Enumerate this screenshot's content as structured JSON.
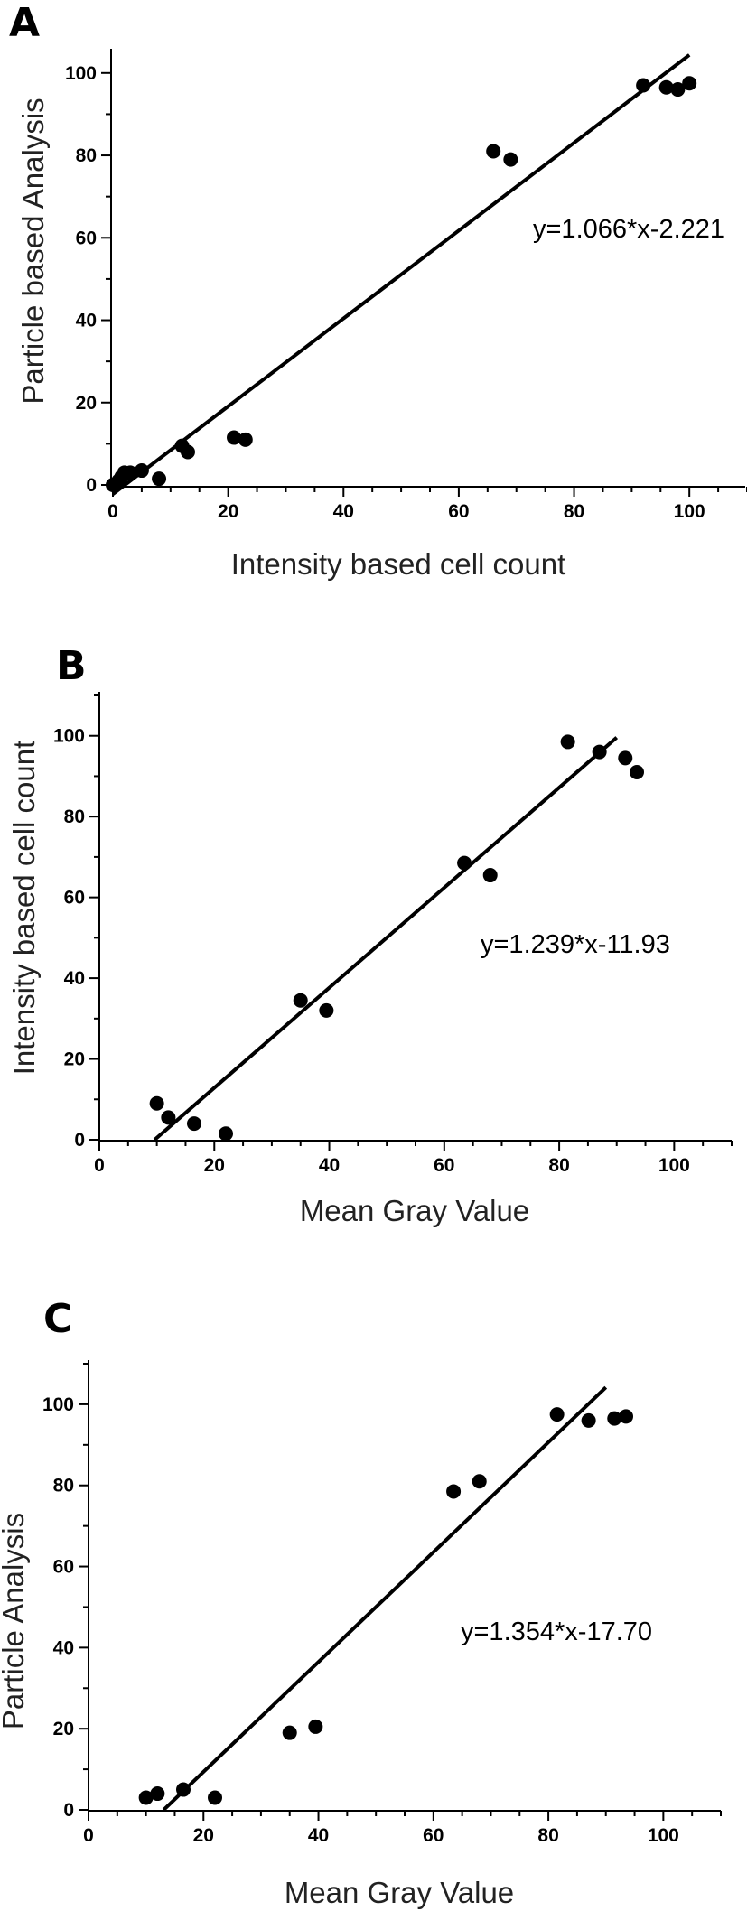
{
  "chart_data": [
    {
      "type": "scatter",
      "panel_label": "A",
      "xlabel": "Intensity based cell count",
      "ylabel": "Particle based Analysis",
      "xlim": [
        0,
        110
      ],
      "ylim": [
        0,
        105
      ],
      "x_ticks": [
        0,
        20,
        40,
        60,
        80,
        100
      ],
      "y_ticks": [
        0,
        20,
        40,
        60,
        80,
        100
      ],
      "grid": false,
      "points": [
        {
          "x": 0,
          "y": 0
        },
        {
          "x": 1,
          "y": 1
        },
        {
          "x": 1.5,
          "y": 2
        },
        {
          "x": 2,
          "y": 3
        },
        {
          "x": 3,
          "y": 3
        },
        {
          "x": 5,
          "y": 3.5
        },
        {
          "x": 8,
          "y": 1.5
        },
        {
          "x": 12,
          "y": 9.5
        },
        {
          "x": 13,
          "y": 8
        },
        {
          "x": 21,
          "y": 11.5
        },
        {
          "x": 23,
          "y": 11
        },
        {
          "x": 66,
          "y": 81
        },
        {
          "x": 69,
          "y": 79
        },
        {
          "x": 92,
          "y": 97
        },
        {
          "x": 96,
          "y": 96.5
        },
        {
          "x": 98,
          "y": 96
        },
        {
          "x": 100,
          "y": 97.5
        }
      ],
      "fit": {
        "slope": 1.066,
        "intercept": -2.221,
        "x_range": [
          0,
          100
        ],
        "equation": "y=1.066*x-2.221"
      }
    },
    {
      "type": "scatter",
      "panel_label": "B",
      "xlabel": "Mean Gray Value",
      "ylabel": "Intensity based cell count",
      "xlim": [
        0,
        110
      ],
      "ylim": [
        0,
        110
      ],
      "x_ticks": [
        0,
        20,
        40,
        60,
        80,
        100
      ],
      "y_ticks": [
        0,
        20,
        40,
        60,
        80,
        100
      ],
      "grid": false,
      "points": [
        {
          "x": 10,
          "y": 9
        },
        {
          "x": 12,
          "y": 5.5
        },
        {
          "x": 16.5,
          "y": 4
        },
        {
          "x": 22,
          "y": 1.5
        },
        {
          "x": 35,
          "y": 34.5
        },
        {
          "x": 39.5,
          "y": 32
        },
        {
          "x": 63.5,
          "y": 68.5
        },
        {
          "x": 68,
          "y": 65.5
        },
        {
          "x": 81.5,
          "y": 98.5
        },
        {
          "x": 87,
          "y": 96
        },
        {
          "x": 91.5,
          "y": 94.5
        },
        {
          "x": 93.5,
          "y": 91
        }
      ],
      "fit": {
        "slope": 1.239,
        "intercept": -11.93,
        "x_range": [
          9.6,
          90
        ],
        "equation": "y=1.239*x-11.93"
      }
    },
    {
      "type": "scatter",
      "panel_label": "C",
      "xlabel": "Mean Gray Value",
      "ylabel": "Particle Analysis",
      "xlim": [
        0,
        110
      ],
      "ylim": [
        0,
        110
      ],
      "x_ticks": [
        0,
        20,
        40,
        60,
        80,
        100
      ],
      "y_ticks": [
        0,
        20,
        40,
        60,
        80,
        100
      ],
      "grid": false,
      "points": [
        {
          "x": 10,
          "y": 3
        },
        {
          "x": 12,
          "y": 4
        },
        {
          "x": 16.5,
          "y": 5
        },
        {
          "x": 22,
          "y": 3
        },
        {
          "x": 35,
          "y": 19
        },
        {
          "x": 39.5,
          "y": 20.5
        },
        {
          "x": 63.5,
          "y": 78.5
        },
        {
          "x": 68,
          "y": 81
        },
        {
          "x": 81.5,
          "y": 97.5
        },
        {
          "x": 87,
          "y": 96
        },
        {
          "x": 91.5,
          "y": 96.5
        },
        {
          "x": 93.5,
          "y": 97
        }
      ],
      "fit": {
        "slope": 1.354,
        "intercept": -17.7,
        "x_range": [
          13.07,
          90
        ],
        "equation": "y=1.354*x-17.70"
      }
    }
  ]
}
